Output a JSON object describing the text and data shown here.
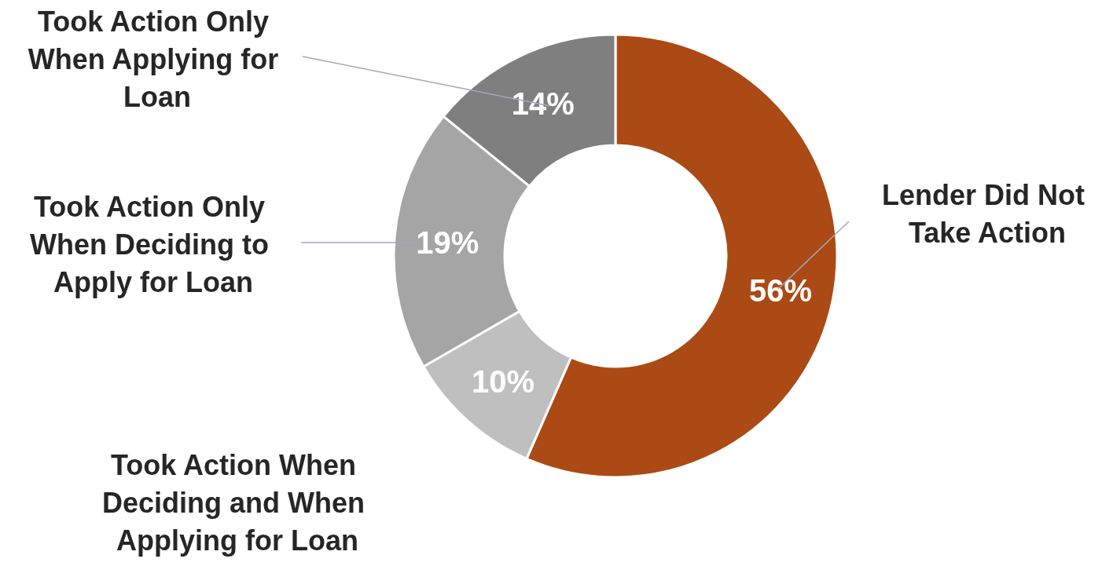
{
  "chart_data": {
    "type": "donut",
    "categories": [
      "Lender Did Not Take Action",
      "Took Action When Deciding and When Applying for Loan",
      "Took Action Only When Deciding to Apply for Loan",
      "Took Action Only When Applying for Loan"
    ],
    "values": [
      56,
      10,
      19,
      14
    ],
    "value_labels": [
      "56%",
      "10%",
      "19%",
      "14%"
    ],
    "colors": [
      "#ab4a14",
      "#bfbfbf",
      "#a5a5a5",
      "#7f7f7f"
    ],
    "legend": false
  }
}
